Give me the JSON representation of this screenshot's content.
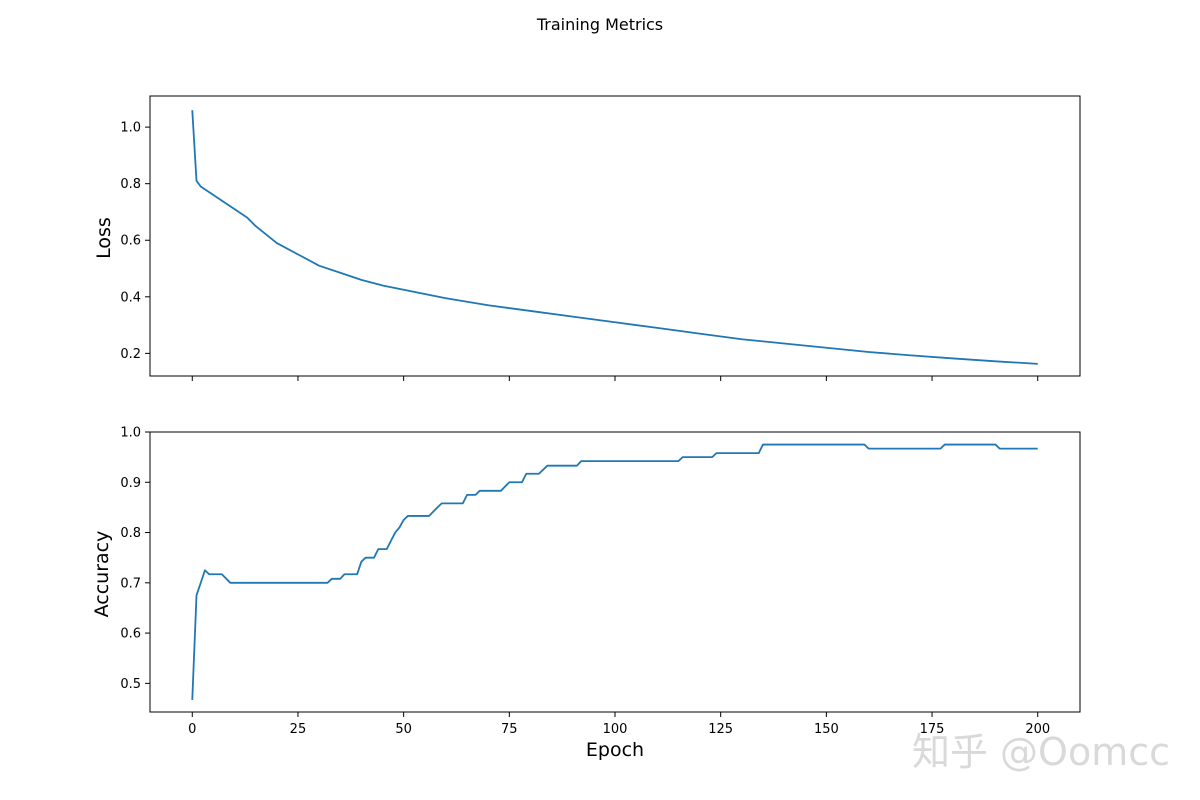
{
  "chart_data": {
    "type": "line",
    "title": "Training Metrics",
    "xlabel": "Epoch",
    "xlim": [
      -10,
      210
    ],
    "x_ticks": [
      0,
      25,
      50,
      75,
      100,
      125,
      150,
      175,
      200
    ],
    "line_color": "#1f77b4",
    "panels": [
      {
        "ylabel": "Loss",
        "ylim": [
          0.12,
          1.11
        ],
        "y_ticks": [
          0.2,
          0.4,
          0.6,
          0.8,
          1.0
        ],
        "y_tick_labels": [
          "0.2",
          "0.4",
          "0.6",
          "0.8",
          "1.0"
        ],
        "points": [
          [
            0,
            1.06
          ],
          [
            1,
            0.81
          ],
          [
            2,
            0.79
          ],
          [
            3,
            0.78
          ],
          [
            5,
            0.76
          ],
          [
            8,
            0.73
          ],
          [
            10,
            0.71
          ],
          [
            13,
            0.68
          ],
          [
            15,
            0.65
          ],
          [
            20,
            0.59
          ],
          [
            25,
            0.55
          ],
          [
            30,
            0.51
          ],
          [
            35,
            0.485
          ],
          [
            40,
            0.46
          ],
          [
            45,
            0.44
          ],
          [
            50,
            0.425
          ],
          [
            60,
            0.395
          ],
          [
            70,
            0.37
          ],
          [
            80,
            0.35
          ],
          [
            90,
            0.33
          ],
          [
            100,
            0.31
          ],
          [
            110,
            0.29
          ],
          [
            120,
            0.27
          ],
          [
            130,
            0.25
          ],
          [
            140,
            0.235
          ],
          [
            150,
            0.22
          ],
          [
            160,
            0.205
          ],
          [
            170,
            0.193
          ],
          [
            180,
            0.182
          ],
          [
            190,
            0.172
          ],
          [
            200,
            0.163
          ]
        ]
      },
      {
        "ylabel": "Accuracy",
        "ylim": [
          0.443,
          1.0
        ],
        "y_ticks": [
          0.5,
          0.6,
          0.7,
          0.8,
          0.9,
          1.0
        ],
        "y_tick_labels": [
          "0.5",
          "0.6",
          "0.7",
          "0.8",
          "0.9",
          "1.0"
        ],
        "points": [
          [
            0,
            0.467
          ],
          [
            1,
            0.675
          ],
          [
            3,
            0.725
          ],
          [
            4,
            0.717
          ],
          [
            7,
            0.717
          ],
          [
            9,
            0.7
          ],
          [
            32,
            0.7
          ],
          [
            33,
            0.708
          ],
          [
            35,
            0.708
          ],
          [
            36,
            0.717
          ],
          [
            39,
            0.717
          ],
          [
            40,
            0.742
          ],
          [
            41,
            0.75
          ],
          [
            43,
            0.75
          ],
          [
            44,
            0.767
          ],
          [
            46,
            0.767
          ],
          [
            48,
            0.8
          ],
          [
            49,
            0.81
          ],
          [
            50,
            0.825
          ],
          [
            51,
            0.833
          ],
          [
            56,
            0.833
          ],
          [
            58,
            0.85
          ],
          [
            59,
            0.858
          ],
          [
            64,
            0.858
          ],
          [
            65,
            0.875
          ],
          [
            67,
            0.875
          ],
          [
            68,
            0.883
          ],
          [
            73,
            0.883
          ],
          [
            75,
            0.9
          ],
          [
            78,
            0.9
          ],
          [
            79,
            0.917
          ],
          [
            82,
            0.917
          ],
          [
            84,
            0.933
          ],
          [
            91,
            0.933
          ],
          [
            92,
            0.942
          ],
          [
            115,
            0.942
          ],
          [
            116,
            0.95
          ],
          [
            123,
            0.95
          ],
          [
            124,
            0.958
          ],
          [
            134,
            0.958
          ],
          [
            135,
            0.975
          ],
          [
            159,
            0.975
          ],
          [
            160,
            0.967
          ],
          [
            177,
            0.967
          ],
          [
            178,
            0.975
          ],
          [
            190,
            0.975
          ],
          [
            191,
            0.967
          ],
          [
            200,
            0.967
          ]
        ]
      }
    ]
  },
  "watermark": "知乎 @Oomcc"
}
